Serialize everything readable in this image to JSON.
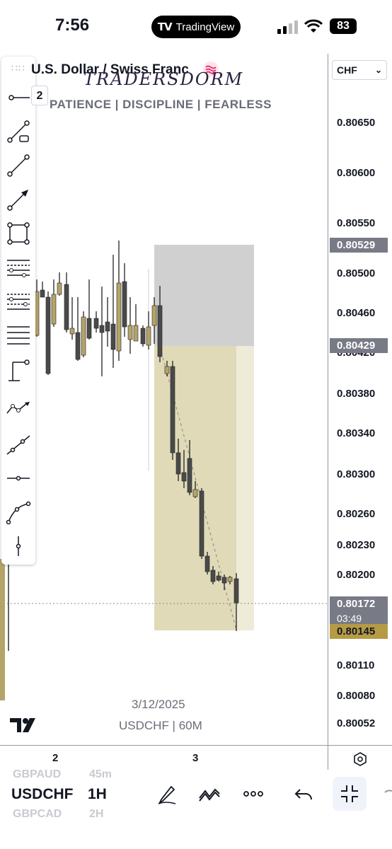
{
  "status_bar": {
    "time": "7:56",
    "app_pill": "TradingView",
    "battery": "83"
  },
  "header": {
    "symbol_title": "U.S. Dollar / Swiss Franc",
    "watermark": "TRADERSDORM",
    "tagline": "PATIENCE  |  DISCIPLINE  |  FEARLESS",
    "interval_badge": "2",
    "currency": "CHF"
  },
  "drawing_tools": [
    "horizontal-ray-icon",
    "trend-angle-icon",
    "trend-line-icon",
    "arrow-icon",
    "rectangle-icon",
    "fib-retracement-icon",
    "fib-extension-icon",
    "parallel-channel-icon",
    "price-range-icon",
    "path-icon",
    "extended-line-icon",
    "horizontal-line-icon",
    "curve-icon",
    "vertical-line-icon"
  ],
  "price_axis": {
    "ticks": [
      "0.80650",
      "0.80600",
      "0.80550",
      "0.80500",
      "0.80460",
      "0.80420",
      "0.80380",
      "0.80340",
      "0.80300",
      "0.80260",
      "0.80230",
      "0.80200",
      "0.80110",
      "0.80080",
      "0.80052"
    ],
    "labels": {
      "target_label": "0.80529",
      "entry_label": "0.80429",
      "current_price": "0.80172",
      "countdown": "03:49",
      "stop_label": "0.80145"
    }
  },
  "colors": {
    "bull_candle": "#b5a46a",
    "bear_candle": "#4a4a4a",
    "target_zone": "#c8c8c8",
    "stop_zone": "#e0dab8",
    "stop_zone_light": "#eeebd8",
    "price_label": "#787b86",
    "stop_label": "#b59b45"
  },
  "chart_info": {
    "date": "3/12/2025",
    "pair": "USDCHF | 60M"
  },
  "time_axis": [
    "2",
    "3"
  ],
  "bottom_bar": {
    "symbol": "USDCHF",
    "interval": "1H",
    "ghost_symbol_above": "GBPAUD",
    "ghost_interval_above": "45m",
    "ghost_symbol_below": "GBPCAD",
    "ghost_interval_below": "2H"
  }
}
